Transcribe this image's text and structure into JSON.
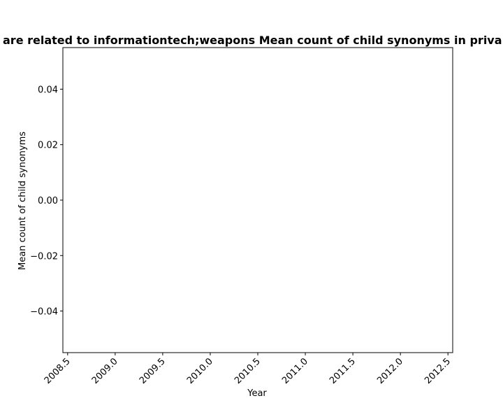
{
  "chart_data": {
    "type": "line",
    "title": "are related to informationtech;weapons Mean count of child synonyms in priva",
    "xlabel": "Year",
    "ylabel": "Mean count of child synonyms",
    "xlim": [
      2008.45,
      2012.55
    ],
    "ylim": [
      -0.055,
      0.055
    ],
    "x_ticks": [
      "2008.5",
      "2009.0",
      "2009.5",
      "2010.0",
      "2010.5",
      "2011.0",
      "2011.5",
      "2012.0",
      "2012.5"
    ],
    "y_ticks": [
      "0.04",
      "0.02",
      "0.00",
      "−0.02",
      "−0.04"
    ],
    "series": [],
    "grid": false,
    "legend": "none"
  }
}
